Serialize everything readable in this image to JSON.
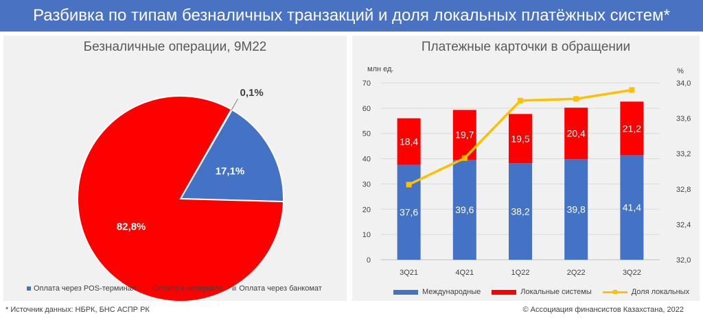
{
  "header": {
    "title": "Разбивка по типам безналичных транзакций и доля локальных платёжных систем*"
  },
  "left_panel": {
    "title": "Безналичные операции, 9М22",
    "legend": [
      "Оплата через POS-терминал",
      "Оплата в интернете",
      "Оплата через банкомат"
    ]
  },
  "right_panel": {
    "title": "Платежные карточки в обращении",
    "y_left_label": "млн ед.",
    "y_right_label": "%",
    "legend": [
      "Международные",
      "Локальные системы",
      "Доля локальных"
    ]
  },
  "footer": {
    "source": "* Источник данных: НБРК, БНС АСПР РК",
    "copyright": "© Ассоциация финансистов Казахстана, 2022"
  },
  "colors": {
    "blue": "#4472c4",
    "red": "#ff0000",
    "gray": "#a5a5a5",
    "yellow": "#ffc000",
    "banner": "#4a72c2"
  },
  "chart_data": [
    {
      "type": "pie",
      "title": "Безналичные операции, 9М22",
      "categories": [
        "Оплата через POS-терминал",
        "Оплата в интернете",
        "Оплата через банкомат"
      ],
      "values": [
        17.1,
        82.8,
        0.1
      ],
      "labels": [
        "17,1%",
        "82,8%",
        "0,1%"
      ],
      "legend_position": "bottom"
    },
    {
      "type": "bar",
      "stacked": true,
      "title": "Платежные карточки в обращении",
      "categories": [
        "3Q21",
        "4Q21",
        "1Q22",
        "2Q22",
        "3Q22"
      ],
      "series": [
        {
          "name": "Международные",
          "values": [
            37.6,
            39.6,
            38.2,
            39.8,
            41.4
          ],
          "labels": [
            "37,6",
            "39,6",
            "38,2",
            "39,8",
            "41,4"
          ]
        },
        {
          "name": "Локальные системы",
          "values": [
            18.4,
            19.7,
            19.5,
            20.4,
            21.2
          ],
          "labels": [
            "18,4",
            "19,7",
            "19,5",
            "20,4",
            "21,2"
          ]
        },
        {
          "name": "Доля локальных",
          "type": "line",
          "axis": "right",
          "values": [
            32.85,
            33.15,
            33.8,
            33.82,
            33.92
          ]
        }
      ],
      "ylabel": "млн ед.",
      "ylim": [
        0,
        70
      ],
      "yticks": [
        "0",
        "10",
        "20",
        "30",
        "40",
        "50",
        "60",
        "70"
      ],
      "y2label": "%",
      "y2lim": [
        32.0,
        34.0
      ],
      "y2ticks": [
        "32,0",
        "32,4",
        "32,8",
        "33,2",
        "33,6",
        "34,0"
      ],
      "grid": true,
      "legend_position": "bottom"
    }
  ]
}
